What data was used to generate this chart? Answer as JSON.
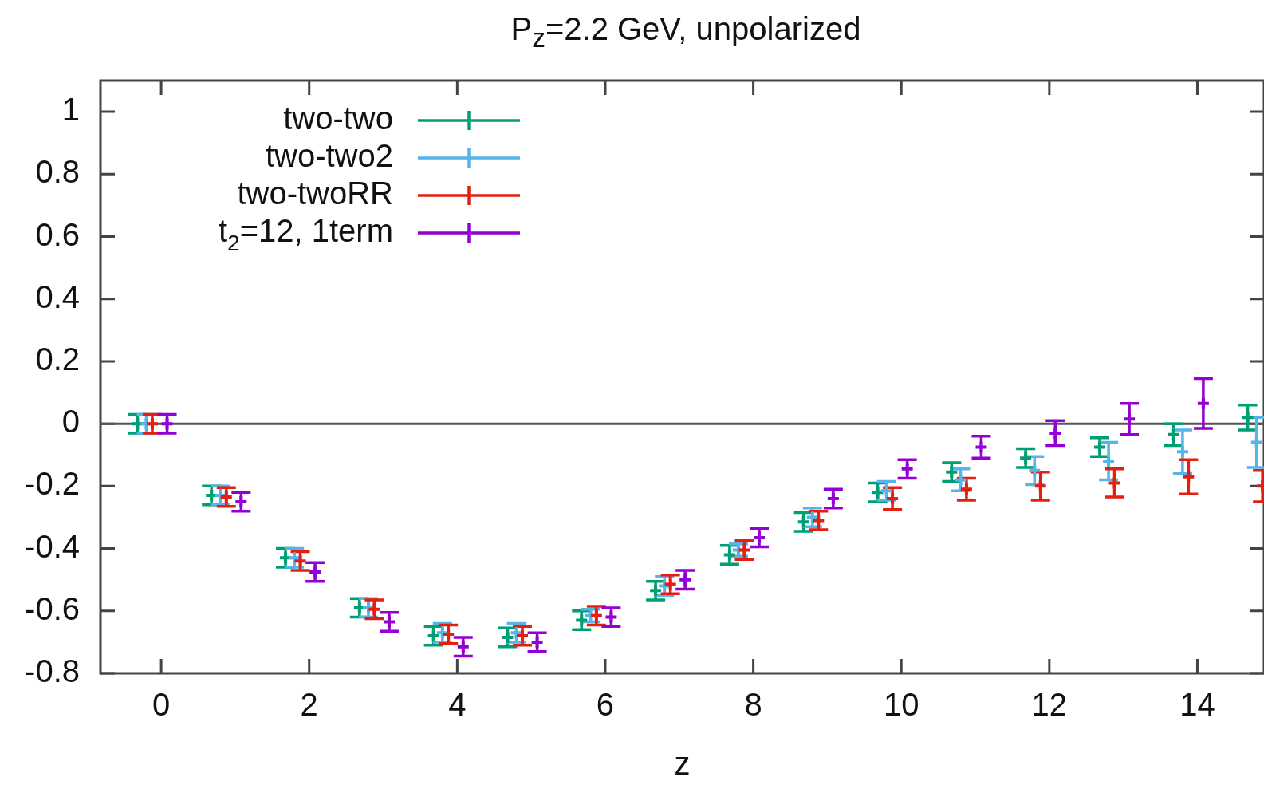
{
  "chart_data": {
    "type": "scatter",
    "title": "P$_{z}$=2.2 GeV, unpolarized",
    "xlabel": "z",
    "xlim": [
      -0.82,
      14.9
    ],
    "ylim": [
      -0.8,
      1.1
    ],
    "xticks": [
      0,
      2,
      4,
      6,
      8,
      10,
      12,
      14
    ],
    "yticks": [
      -0.8,
      -0.6,
      -0.4,
      -0.2,
      0,
      0.2,
      0.4,
      0.6,
      0.8,
      1
    ],
    "grid": false,
    "legend": "top left",
    "marker": "cross",
    "ref_lines": [
      {
        "axis": "y",
        "value": 0,
        "color": "#555555"
      }
    ],
    "series": [
      {
        "name": "two-two",
        "color": "#009e73",
        "x": [
          -0.32,
          0.68,
          1.68,
          2.68,
          3.68,
          4.68,
          5.68,
          6.68,
          7.68,
          8.68,
          9.68,
          10.68,
          11.68,
          12.68,
          13.68,
          14.68
        ],
        "values": [
          0,
          -0.23,
          -0.43,
          -0.59,
          -0.68,
          -0.685,
          -0.63,
          -0.535,
          -0.42,
          -0.315,
          -0.22,
          -0.155,
          -0.11,
          -0.075,
          -0.035,
          0.02
        ],
        "errors": [
          0.03,
          0.03,
          0.03,
          0.03,
          0.03,
          0.03,
          0.03,
          0.03,
          0.03,
          0.03,
          0.03,
          0.03,
          0.03,
          0.03,
          0.035,
          0.04
        ]
      },
      {
        "name": "two-two2",
        "color": "#56b4e9",
        "x": [
          -0.2,
          0.8,
          1.8,
          2.8,
          3.8,
          4.8,
          5.8,
          6.8,
          7.8,
          8.8,
          9.8,
          10.8,
          11.8,
          12.8,
          13.8,
          14.8
        ],
        "values": [
          0,
          -0.23,
          -0.43,
          -0.59,
          -0.67,
          -0.67,
          -0.615,
          -0.52,
          -0.405,
          -0.3,
          -0.215,
          -0.18,
          -0.15,
          -0.12,
          -0.09,
          -0.06
        ],
        "errors": [
          0.03,
          0.03,
          0.03,
          0.03,
          0.03,
          0.03,
          0.02,
          0.03,
          0.02,
          0.03,
          0.03,
          0.035,
          0.045,
          0.06,
          0.07,
          0.08
        ]
      },
      {
        "name": "two-twoRR",
        "color": "#e51e10",
        "x": [
          -0.12,
          0.88,
          1.88,
          2.88,
          3.88,
          4.88,
          5.88,
          6.88,
          7.88,
          8.88,
          9.88,
          10.88,
          11.88,
          12.88,
          13.88,
          14.88
        ],
        "values": [
          0,
          -0.235,
          -0.44,
          -0.595,
          -0.675,
          -0.68,
          -0.615,
          -0.515,
          -0.405,
          -0.31,
          -0.24,
          -0.21,
          -0.2,
          -0.19,
          -0.17,
          -0.2
        ],
        "errors": [
          0.03,
          0.03,
          0.03,
          0.03,
          0.03,
          0.03,
          0.03,
          0.03,
          0.03,
          0.03,
          0.035,
          0.035,
          0.045,
          0.045,
          0.055,
          0.05
        ]
      },
      {
        "name": "t$_{2}$=12, 1term",
        "color": "#9400d3",
        "x": [
          0.08,
          1.08,
          2.08,
          3.08,
          4.08,
          5.08,
          6.08,
          7.08,
          8.08,
          9.08,
          10.08,
          11.08,
          12.08,
          13.08,
          14.08
        ],
        "values": [
          0,
          -0.25,
          -0.475,
          -0.635,
          -0.715,
          -0.7,
          -0.62,
          -0.5,
          -0.365,
          -0.24,
          -0.145,
          -0.075,
          -0.03,
          0.015,
          0.065
        ],
        "errors": [
          0.03,
          0.03,
          0.03,
          0.03,
          0.03,
          0.03,
          0.03,
          0.03,
          0.03,
          0.03,
          0.03,
          0.035,
          0.04,
          0.05,
          0.08
        ]
      }
    ]
  }
}
